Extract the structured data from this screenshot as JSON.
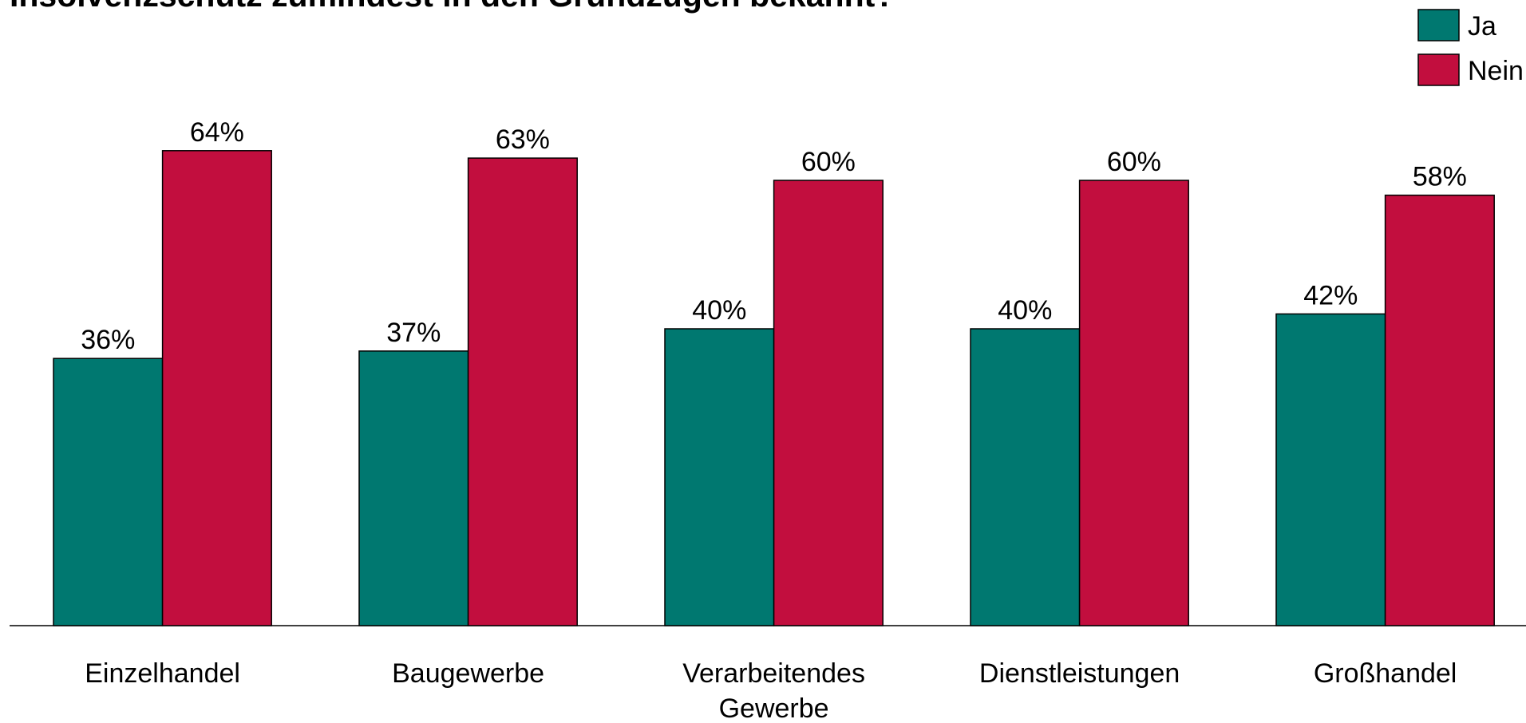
{
  "chart_data": {
    "type": "bar",
    "title": "Insolvenzschutz zumindest in den Grundzügen bekannt?",
    "categories": [
      "Einzelhandel",
      "Baugewerbe",
      "Verarbeitendes Gewerbe",
      "Dienstleistungen",
      "Großhandel"
    ],
    "series": [
      {
        "name": "Ja",
        "color": "#007870",
        "values": [
          36,
          37,
          40,
          40,
          42
        ],
        "value_labels": [
          "36%",
          "37%",
          "40%",
          "40%",
          "42%"
        ]
      },
      {
        "name": "Nein",
        "color": "#c20e3e",
        "values": [
          64,
          63,
          60,
          60,
          58
        ],
        "value_labels": [
          "64%",
          "63%",
          "60%",
          "60%",
          "58%"
        ]
      }
    ],
    "legend": "top-right"
  }
}
